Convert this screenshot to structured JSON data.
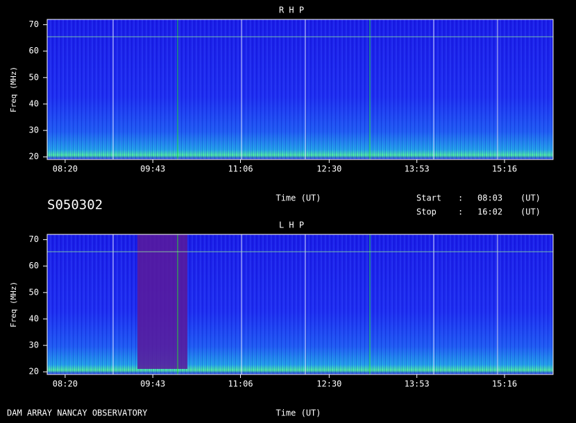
{
  "chart_data": [
    {
      "type": "spectrogram",
      "title": "R H P",
      "xlabel": "Time (UT)",
      "ylabel": "Freq (MHz)",
      "xlim": [
        483,
        962
      ],
      "xticks": [
        {
          "value": 500,
          "label": "08:20"
        },
        {
          "value": 583,
          "label": "09:43"
        },
        {
          "value": 666,
          "label": "11:06"
        },
        {
          "value": 750,
          "label": "12:30"
        },
        {
          "value": 833,
          "label": "13:53"
        },
        {
          "value": 916,
          "label": "15:16"
        }
      ],
      "ylim": [
        19,
        72
      ],
      "yticks": [
        20,
        30,
        40,
        50,
        60,
        70
      ]
    },
    {
      "type": "spectrogram",
      "title": "L H P",
      "xlabel": "Time (UT)",
      "ylabel": "Freq (MHz)",
      "xlim": [
        483,
        962
      ],
      "xticks": [
        {
          "value": 500,
          "label": "08:20"
        },
        {
          "value": 583,
          "label": "09:43"
        },
        {
          "value": 666,
          "label": "11:06"
        },
        {
          "value": 750,
          "label": "12:30"
        },
        {
          "value": 833,
          "label": "13:53"
        },
        {
          "value": 916,
          "label": "15:16"
        }
      ],
      "ylim": [
        19,
        72
      ],
      "yticks": [
        20,
        30,
        40,
        50,
        60,
        70
      ]
    }
  ],
  "info": {
    "id": "S050302",
    "start_label": "Start",
    "start_sep": ":",
    "start": "08:03",
    "start_unit": "(UT)",
    "stop_label": "Stop",
    "stop_sep": ":",
    "stop": "16:02",
    "stop_unit": "(UT)"
  },
  "footer": "DAM ARRAY  NANCAY OBSERVATORY"
}
